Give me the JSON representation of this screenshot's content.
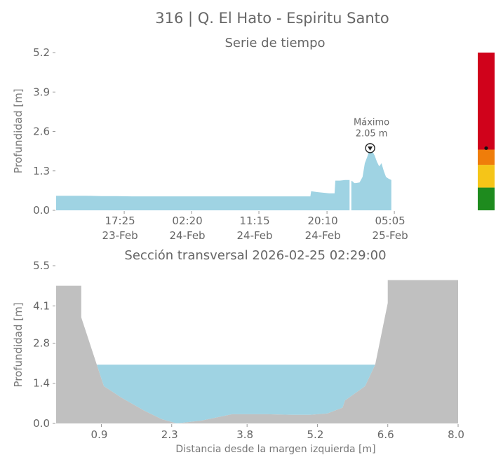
{
  "figure": {
    "title": "316 | Q. El Hato - Espiritu Santo"
  },
  "chart_data": [
    {
      "type": "area",
      "title": "Serie de tiempo",
      "xlabel": "",
      "ylabel": "Profundidad [m]",
      "x_unit": "hours",
      "xlim": [
        0,
        53.5
      ],
      "ylim": [
        0,
        5.2
      ],
      "yticks": [
        0.0,
        1.3,
        2.6,
        3.9,
        5.2
      ],
      "ytick_labels": [
        "0.0",
        "1.3",
        "2.6",
        "3.9",
        "5.2"
      ],
      "xticks": [
        {
          "x": 9.0,
          "time": "17:25",
          "date": "23-Feb"
        },
        {
          "x": 17.9,
          "time": "02:20",
          "date": "24-Feb"
        },
        {
          "x": 26.8,
          "time": "11:15",
          "date": "24-Feb"
        },
        {
          "x": 35.8,
          "time": "20:10",
          "date": "24-Feb"
        },
        {
          "x": 44.7,
          "time": "05:05",
          "date": "25-Feb"
        }
      ],
      "series": [
        {
          "color": "#9fd3e3",
          "x": [
            0,
            2,
            4,
            6,
            8,
            10,
            12,
            14,
            16,
            18,
            20,
            22,
            24,
            26,
            28,
            30,
            32,
            33.6,
            33.7,
            34.5,
            35.3,
            36.1,
            36.8,
            36.9,
            37.5,
            38.2,
            38.8,
            39.2,
            39.4,
            39.6,
            40.1,
            40.5,
            40.8,
            41.1,
            41.5,
            41.8,
            42.1,
            42.4,
            42.7,
            43.0,
            43.3,
            43.6,
            43.9,
            44.3
          ],
          "y": [
            0.48,
            0.48,
            0.48,
            0.47,
            0.47,
            0.46,
            0.46,
            0.46,
            0.46,
            0.46,
            0.46,
            0.46,
            0.46,
            0.46,
            0.46,
            0.46,
            0.46,
            0.46,
            0.63,
            0.6,
            0.58,
            0.56,
            0.56,
            0.98,
            0.98,
            1.0,
            1.0,
            0.95,
            0.9,
            0.9,
            0.92,
            1.1,
            1.55,
            1.75,
            2.05,
            1.95,
            1.8,
            1.6,
            1.45,
            1.55,
            1.3,
            1.1,
            1.05,
            1.0
          ]
        }
      ],
      "gaps": [
        38.9
      ],
      "annotation": {
        "x": 41.5,
        "y": 2.05,
        "label_line1": "Máximo",
        "label_line2": "2.05 m"
      },
      "alert_bar": {
        "levels": [
          {
            "from": 0.0,
            "to": 0.75,
            "color": "#1e8b1e"
          },
          {
            "from": 0.75,
            "to": 1.5,
            "color": "#f5c518"
          },
          {
            "from": 1.5,
            "to": 2.0,
            "color": "#ef7d0a"
          },
          {
            "from": 2.0,
            "to": 5.2,
            "color": "#d0021b"
          }
        ],
        "marker_value": 2.05
      }
    },
    {
      "type": "area",
      "title": "Sección transversal 2026-02-25 02:29:00",
      "xlabel": "Distancia desde la margen izquierda [m]",
      "ylabel": "Profundidad [m]",
      "xlim": [
        0,
        8.0
      ],
      "ylim": [
        0,
        5.5
      ],
      "xticks": [
        0.9,
        2.3,
        3.8,
        5.2,
        6.6,
        8.0
      ],
      "xtick_labels": [
        "0.9",
        "2.3",
        "3.8",
        "5.2",
        "6.6",
        "8.0"
      ],
      "yticks": [
        0.0,
        1.4,
        2.8,
        4.1,
        5.5
      ],
      "ytick_labels": [
        "0.0",
        "1.4",
        "2.8",
        "4.1",
        "5.5"
      ],
      "water_level": 2.05,
      "ground": {
        "color": "#c0c0c0",
        "x": [
          0.0,
          0.5,
          0.5,
          0.95,
          1.3,
          1.75,
          2.1,
          2.4,
          2.9,
          3.5,
          4.2,
          4.7,
          5.05,
          5.4,
          5.7,
          5.75,
          6.15,
          6.35,
          6.6,
          6.6,
          8.0
        ],
        "y": [
          4.8,
          4.8,
          3.7,
          1.3,
          0.9,
          0.45,
          0.15,
          0.0,
          0.1,
          0.32,
          0.32,
          0.3,
          0.3,
          0.35,
          0.55,
          0.8,
          1.3,
          2.05,
          4.2,
          5.0,
          5.0
        ]
      },
      "water_color": "#9fd3e3"
    }
  ]
}
